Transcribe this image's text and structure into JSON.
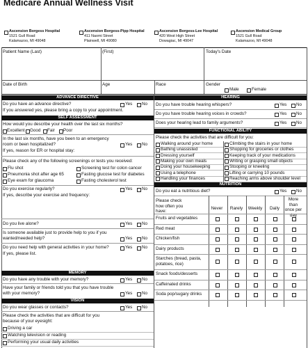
{
  "title": "Medicare Annual Wellness Visit",
  "locations": [
    {
      "name": "Ascension Borgess Hospital",
      "street": "1521 Gull Road",
      "city": "Kalamazoo, MI 49048"
    },
    {
      "name": "Ascension Borgess-Pipp Hospital",
      "street": "411 Naomi Street",
      "city": "Plainwell, MI 49080"
    },
    {
      "name": "Ascension Borgess-Lee Hospital",
      "street": "420 West High Street",
      "city": "Dowagiac, MI 49047"
    },
    {
      "name": "Ascension Medical Group",
      "street": "1521 Gull Road",
      "city": "Kalamazoo, MI 49048"
    }
  ],
  "labels": {
    "yes": "Yes",
    "no": "No"
  },
  "patient": {
    "last": "Patient Name (Last)",
    "first": "(First)",
    "date": "Today's Date",
    "dob": "Date of Birth",
    "age": "Age",
    "race": "Race",
    "gender": "Gender",
    "male": "Male",
    "female": "Female"
  },
  "advance_directive": {
    "heading": "ADVANCE DIRECTIVE",
    "question": "Do you have an advance directive?",
    "note": "If you answered yes, please bring a copy to your appointment."
  },
  "self_assessment": {
    "heading": "SELF ASSESSMENT",
    "health_question": "How would you describe your health over the last six months?",
    "health_options": [
      "Excellent",
      "Good",
      "Fair",
      "Poor"
    ],
    "er_question": "In the last six months, have you been to an emergency room or been hospitalized?",
    "er_note": "If yes, reason for ER or hospital stay:",
    "screenings_question": "Please check any of the following screenings or tests you received:",
    "screenings": [
      "Flu shot",
      "Screening test for colon cancer",
      "Pneumonia shot after age 65",
      "Fasting glucose test for diabetes",
      "Eye exam for glaucoma",
      "Fasting cholesterol test"
    ],
    "exercise_question": "Do you exercise regularly?",
    "exercise_note": "If yes, describe your exercise and frequency:",
    "live_alone": "Do you live alone?",
    "help_available": "Is someone available just to provide help to you if you wanted/needed help?",
    "home_help": "Do you need help with general activities in your home?",
    "home_help_note": "If yes, please list."
  },
  "memory": {
    "heading": "MEMORY",
    "trouble": "Do you have any trouble with your memory?",
    "family": "Have your family or friends told you that you have trouble with your memory?"
  },
  "vision": {
    "heading": "VISION",
    "glasses": "Do you wear glasses or contacts?",
    "activities_question": "Please check the activities that are difficult for you because of your eyesight:",
    "activities": [
      "Driving a car",
      "Watching television or reading",
      "Performing your usual daily activities"
    ]
  },
  "hearing": {
    "heading": "HEARING",
    "questions": [
      "Do you have trouble hearing whispers?",
      "Do you have trouble hearing voices in crowds?",
      "Does your hearing lead to family arguments?"
    ]
  },
  "functional_ability": {
    "heading": "FUNCTIONAL ABILITY",
    "instruction": "Please check the activities that are difficult for you:",
    "activities": [
      [
        "Walking around your home",
        "Climbing the stairs in your home"
      ],
      [
        "Bathing unassisted",
        "Shopping for groceries or clothes"
      ],
      [
        "Dressing yourself",
        "Keeping track of your medications"
      ],
      [
        "Making your own meals",
        "Writing or grasping small objects"
      ],
      [
        "Doing your housekeeping",
        "Stooping or kneeling"
      ],
      [
        "Using a telephone",
        "Lifting or carrying 10 pounds"
      ],
      [
        "Handling your finances",
        "Reaching arms above shoulder level"
      ]
    ]
  },
  "nutrition": {
    "heading": "NUTRITION",
    "diet_question": "Do you eat a nutritious diet?",
    "frequency_prompt": "Please check how often you have:",
    "frequencies": [
      "Never",
      "Rarely",
      "Weekly",
      "Daily",
      "More than once per day"
    ],
    "foods": [
      "Fruits and vegetables",
      "Red meat",
      "Chicken/fish",
      "Dairy products",
      "Starches (bread, pasta, potatoes, rice)",
      "Snack foods/desserts",
      "Caffeinated drinks",
      "Soda pop/sugary drinks"
    ]
  }
}
